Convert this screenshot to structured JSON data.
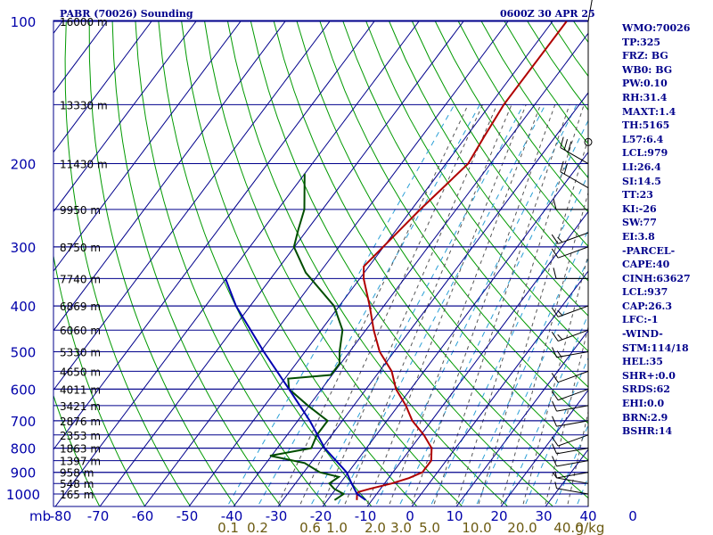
{
  "header": {
    "left": "PABR (70026) Sounding",
    "right": "0600Z 30 APR 25"
  },
  "indices": [
    "WMO:70026",
    "TP:325",
    "FRZ: BG",
    "WB0: BG",
    "PW:0.10",
    "RH:31.4",
    "MAXT:1.4",
    "TH:5165",
    "L57:6.4",
    "LCL:979",
    "LI:26.4",
    "SI:14.5",
    "TT:23",
    "KI:-26",
    "SW:77",
    "EI:3.8",
    "-PARCEL-",
    "CAPE:40",
    "CINH:63627",
    "LCL:937",
    "CAP:26.3",
    "LFC:-1",
    "-WIND-",
    "STM:114/18",
    "HEL:35",
    "SHR+:0.0",
    "SRDS:62",
    "EHI:0.0",
    "BRN:2.9",
    "BSHR:14"
  ],
  "colors": {
    "grid": "#00008b",
    "dry_adiabat": "#009900",
    "moist_adiabat": "#555555",
    "mixing_ratio": "#2a9fd6",
    "temperature": "#b00000",
    "dewpoint": "#004d00",
    "parcel": "#0000b0",
    "axis_text": "#0000aa",
    "mixing_text": "#6b5a10",
    "wind": "#000000"
  },
  "chart_data": {
    "type": "line",
    "title": "PABR (70026) Sounding",
    "x_axis": {
      "label": "",
      "units_label": "mb",
      "ticks": [
        "-80",
        "-70",
        "-60",
        "-50",
        "-40",
        "-30",
        "-20",
        "-10",
        "0",
        "10",
        "20",
        "30",
        "40",
        "0"
      ],
      "range": [
        -80,
        40
      ]
    },
    "y_axis": {
      "label": "",
      "scale": "log",
      "pressure_ticks": [
        "100",
        "200",
        "300",
        "400",
        "500",
        "600",
        "700",
        "800",
        "900",
        "1000"
      ],
      "range": [
        100,
        1050
      ]
    },
    "height_labels": [
      {
        "p": 100,
        "label": "16000 m"
      },
      {
        "p": 150,
        "label": "13330 m"
      },
      {
        "p": 200,
        "label": "11430 m"
      },
      {
        "p": 250,
        "label": "9950 m"
      },
      {
        "p": 300,
        "label": "8750 m"
      },
      {
        "p": 350,
        "label": "7740 m"
      },
      {
        "p": 400,
        "label": "6869 m"
      },
      {
        "p": 450,
        "label": "6060 m"
      },
      {
        "p": 500,
        "label": "5330 m"
      },
      {
        "p": 550,
        "label": "4650 m"
      },
      {
        "p": 600,
        "label": "4011 m"
      },
      {
        "p": 650,
        "label": "3421 m"
      },
      {
        "p": 700,
        "label": "2876 m"
      },
      {
        "p": 750,
        "label": "2353 m"
      },
      {
        "p": 800,
        "label": "1863 m"
      },
      {
        "p": 850,
        "label": "1397 m"
      },
      {
        "p": 900,
        "label": "958 m"
      },
      {
        "p": 950,
        "label": "548 m"
      },
      {
        "p": 1000,
        "label": "165 m"
      }
    ],
    "mixing_ratio_labels": [
      "0.1",
      "0.2",
      "0.6",
      "1.0",
      "2.0",
      "3.0",
      "5.0",
      "10.0",
      "20.0",
      "40.0",
      "g/kg"
    ],
    "series": [
      {
        "key": "temperature",
        "points": [
          [
            100,
            -47
          ],
          [
            150,
            -47
          ],
          [
            175,
            -46
          ],
          [
            200,
            -45
          ],
          [
            250,
            -48
          ],
          [
            300,
            -50
          ],
          [
            330,
            -51
          ],
          [
            350,
            -49
          ],
          [
            400,
            -43
          ],
          [
            450,
            -38
          ],
          [
            500,
            -33
          ],
          [
            550,
            -27
          ],
          [
            600,
            -23
          ],
          [
            650,
            -18
          ],
          [
            700,
            -14
          ],
          [
            750,
            -9
          ],
          [
            800,
            -5
          ],
          [
            850,
            -3
          ],
          [
            900,
            -3
          ],
          [
            925,
            -5
          ],
          [
            950,
            -8
          ],
          [
            975,
            -12
          ],
          [
            990,
            -14
          ],
          [
            1000,
            -14
          ],
          [
            1030,
            -13
          ]
        ]
      },
      {
        "key": "dewpoint",
        "points": [
          [
            210,
            -80
          ],
          [
            250,
            -74
          ],
          [
            275,
            -72
          ],
          [
            300,
            -70
          ],
          [
            340,
            -63
          ],
          [
            400,
            -51
          ],
          [
            450,
            -45
          ],
          [
            500,
            -42
          ],
          [
            530,
            -40
          ],
          [
            560,
            -40
          ],
          [
            570,
            -49
          ],
          [
            600,
            -47
          ],
          [
            650,
            -40
          ],
          [
            700,
            -33
          ],
          [
            750,
            -33
          ],
          [
            800,
            -32
          ],
          [
            830,
            -40
          ],
          [
            860,
            -31
          ],
          [
            900,
            -26
          ],
          [
            920,
            -21
          ],
          [
            950,
            -22
          ],
          [
            975,
            -20
          ],
          [
            1000,
            -17
          ],
          [
            1030,
            -18
          ]
        ]
      },
      {
        "key": "parcel",
        "points": [
          [
            350,
            -80
          ],
          [
            400,
            -73
          ],
          [
            500,
            -59
          ],
          [
            600,
            -47
          ],
          [
            700,
            -37
          ],
          [
            800,
            -29
          ],
          [
            900,
            -20
          ],
          [
            950,
            -17
          ],
          [
            1000,
            -14
          ],
          [
            1030,
            -11
          ]
        ]
      }
    ],
    "wind_barbs": [
      {
        "p": 100,
        "dir": 10,
        "speed": 10
      },
      {
        "p": 180,
        "dir": 0,
        "speed": 0
      },
      {
        "p": 200,
        "dir": 300,
        "speed": 30
      },
      {
        "p": 225,
        "dir": 300,
        "speed": 20
      },
      {
        "p": 250,
        "dir": 270,
        "speed": 10
      },
      {
        "p": 280,
        "dir": 250,
        "speed": 15
      },
      {
        "p": 300,
        "dir": 250,
        "speed": 10
      },
      {
        "p": 350,
        "dir": 270,
        "speed": 10
      },
      {
        "p": 400,
        "dir": 250,
        "speed": 15
      },
      {
        "p": 450,
        "dir": 250,
        "speed": 15
      },
      {
        "p": 500,
        "dir": 260,
        "speed": 15
      },
      {
        "p": 550,
        "dir": 250,
        "speed": 10
      },
      {
        "p": 600,
        "dir": 250,
        "speed": 10
      },
      {
        "p": 650,
        "dir": 260,
        "speed": 10
      },
      {
        "p": 700,
        "dir": 260,
        "speed": 10
      },
      {
        "p": 750,
        "dir": 250,
        "speed": 10
      },
      {
        "p": 800,
        "dir": 260,
        "speed": 10
      },
      {
        "p": 850,
        "dir": 260,
        "speed": 10
      },
      {
        "p": 900,
        "dir": 260,
        "speed": 5
      },
      {
        "p": 950,
        "dir": 280,
        "speed": 5
      },
      {
        "p": 1000,
        "dir": 280,
        "speed": 5
      }
    ]
  }
}
